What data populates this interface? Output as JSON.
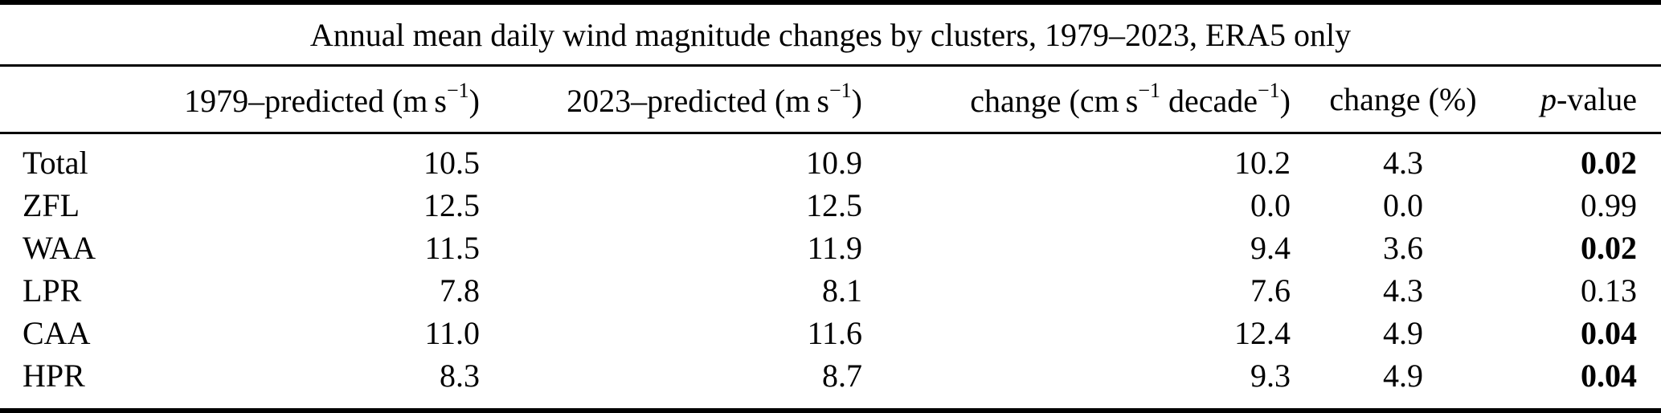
{
  "page": {
    "background_color": "#ffffff",
    "text_color": "#000000",
    "rule_color": "#000000"
  },
  "table": {
    "title": "Annual mean daily wind magnitude changes by clusters, 1979–2023, ERA5 only",
    "columns": [
      {
        "id": "cluster",
        "label_segments": []
      },
      {
        "id": "pred-1979",
        "label_segments": [
          {
            "t": "1979–predicted (m s"
          },
          {
            "t": "−1",
            "sup": true
          },
          {
            "t": ")"
          }
        ]
      },
      {
        "id": "pred-2023",
        "label_segments": [
          {
            "t": "2023–predicted (m s"
          },
          {
            "t": "−1",
            "sup": true
          },
          {
            "t": ")"
          }
        ]
      },
      {
        "id": "change-cms-decade",
        "label_segments": [
          {
            "t": "change (cm s"
          },
          {
            "t": "−1",
            "sup": true
          },
          {
            "t": " decade"
          },
          {
            "t": "−1",
            "sup": true
          },
          {
            "t": ")"
          }
        ]
      },
      {
        "id": "change-percent",
        "label_segments": [
          {
            "t": "change (%)"
          }
        ]
      },
      {
        "id": "p-value",
        "label_segments": [
          {
            "t": "p",
            "italic": true
          },
          {
            "t": "-value"
          }
        ]
      }
    ],
    "rows": [
      {
        "label": "Total",
        "cells": [
          {
            "v": "10.5"
          },
          {
            "v": "10.9"
          },
          {
            "v": "10.2"
          },
          {
            "v": "4.3"
          },
          {
            "v": "0.02",
            "bold": true
          }
        ]
      },
      {
        "label": "ZFL",
        "cells": [
          {
            "v": "12.5"
          },
          {
            "v": "12.5"
          },
          {
            "v": "0.0"
          },
          {
            "v": "0.0"
          },
          {
            "v": "0.99"
          }
        ]
      },
      {
        "label": "WAA",
        "cells": [
          {
            "v": "11.5"
          },
          {
            "v": "11.9"
          },
          {
            "v": "9.4"
          },
          {
            "v": "3.6"
          },
          {
            "v": "0.02",
            "bold": true
          }
        ]
      },
      {
        "label": "LPR",
        "cells": [
          {
            "v": "7.8"
          },
          {
            "v": "8.1"
          },
          {
            "v": "7.6"
          },
          {
            "v": "4.3"
          },
          {
            "v": "0.13"
          }
        ]
      },
      {
        "label": "CAA",
        "cells": [
          {
            "v": "11.0"
          },
          {
            "v": "11.6"
          },
          {
            "v": "12.4"
          },
          {
            "v": "4.9"
          },
          {
            "v": "0.04",
            "bold": true
          }
        ]
      },
      {
        "label": "HPR",
        "cells": [
          {
            "v": "8.3"
          },
          {
            "v": "8.7"
          },
          {
            "v": "9.3"
          },
          {
            "v": "4.9"
          },
          {
            "v": "0.04",
            "bold": true
          }
        ]
      }
    ]
  }
}
